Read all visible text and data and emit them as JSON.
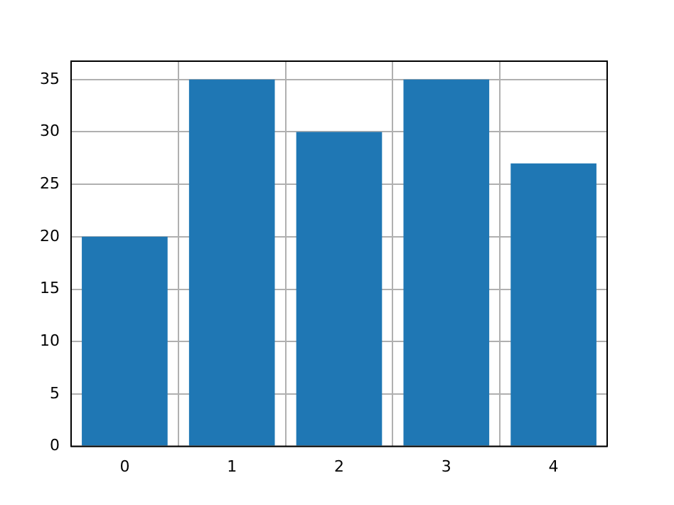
{
  "chart_data": {
    "type": "bar",
    "categories": [
      "0",
      "1",
      "2",
      "3",
      "4"
    ],
    "values": [
      20,
      35,
      30,
      35,
      27
    ],
    "color": "#1f77b4",
    "ylim": [
      0,
      36.75
    ],
    "yticks": [
      0,
      5,
      10,
      15,
      20,
      25,
      30,
      35
    ],
    "grid": true
  }
}
